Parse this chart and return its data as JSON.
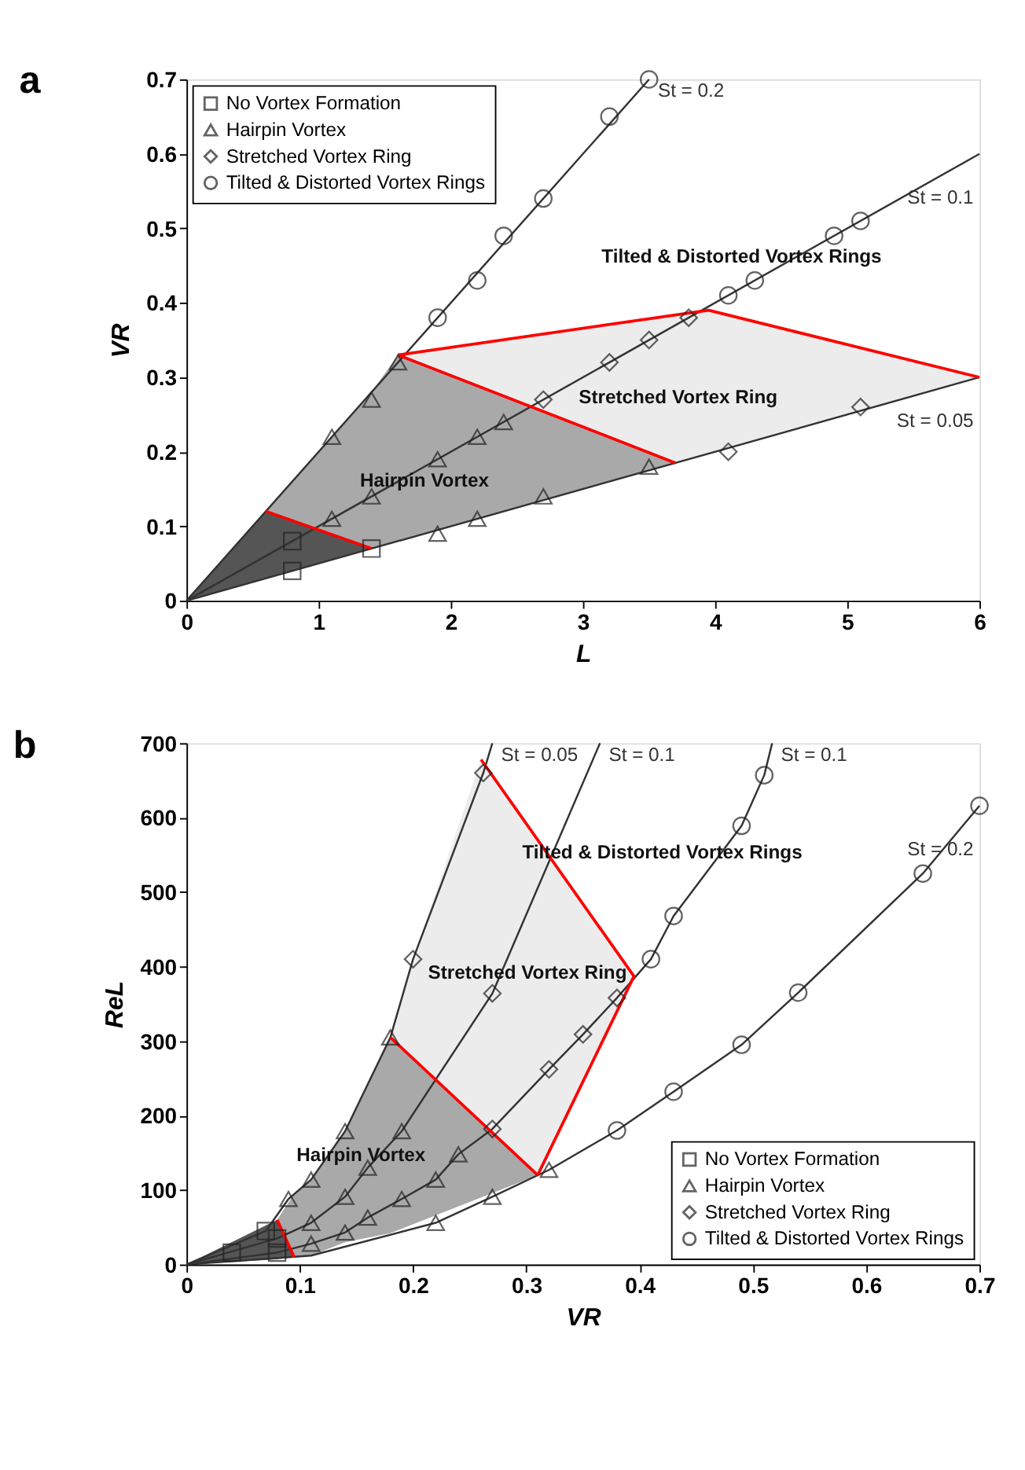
{
  "chart_data": [
    {
      "type": "scatter",
      "title": "a",
      "xlabel": "L",
      "ylabel": "VR",
      "xlim": [
        0,
        6
      ],
      "ylim": [
        0,
        0.7
      ],
      "xticks": [
        0,
        1,
        2,
        3,
        4,
        5,
        6
      ],
      "yticks": [
        0,
        0.1,
        0.2,
        0.3,
        0.4,
        0.5,
        0.6,
        0.7
      ],
      "grid": false,
      "legend": "top left",
      "series": [
        {
          "type": "area",
          "color": "#555555",
          "x": [
            0,
            0.6,
            1.4
          ],
          "values": [
            null,
            null,
            null
          ],
          "upper": [
            0,
            0.12,
            0.07
          ],
          "lower": [
            0,
            0.03,
            0.07
          ]
        },
        {
          "type": "area",
          "color": "#a9a9a9",
          "x": [
            0.6,
            1.4,
            1.6,
            3.7
          ],
          "values": [
            null,
            null,
            null,
            null
          ],
          "upper": [
            0.12,
            0.28,
            0.33,
            0.185
          ],
          "lower": [
            0.12,
            0.07,
            0.08,
            0.185
          ]
        },
        {
          "type": "area",
          "color": "#ececec",
          "x": [
            1.6,
            3.7,
            3.95,
            6
          ],
          "values": [
            null,
            null,
            null,
            null
          ],
          "upper": [
            0.33,
            0.384,
            0.39,
            0.3
          ],
          "lower": [
            0.33,
            0.185,
            0.1975,
            0.3
          ]
        },
        {
          "type": "line",
          "name": "St = 0.2",
          "color": "#333333",
          "x": [
            0,
            3.5
          ],
          "values": [
            0,
            0.7
          ]
        },
        {
          "type": "line",
          "name": "St = 0.1",
          "color": "#333333",
          "x": [
            0,
            6
          ],
          "values": [
            0,
            0.6
          ]
        },
        {
          "type": "line",
          "name": "St = 0.05",
          "color": "#333333",
          "x": [
            0,
            6
          ],
          "values": [
            0,
            0.3
          ]
        },
        {
          "type": "line",
          "color": "#ff0000",
          "x": [
            0.6,
            1.4
          ],
          "values": [
            0.12,
            0.07
          ]
        },
        {
          "type": "line",
          "color": "#ff0000",
          "x": [
            1.6,
            3.7
          ],
          "values": [
            0.33,
            0.185
          ]
        },
        {
          "type": "line",
          "color": "#ff0000",
          "x": [
            1.6,
            3.95,
            6
          ],
          "values": [
            0.33,
            0.39,
            0.3
          ]
        },
        {
          "type": "scatter",
          "name": "No Vortex Formation",
          "marker": "square",
          "color": "#222222",
          "x": [
            0.8,
            0.8,
            1.4
          ],
          "values": [
            0.08,
            0.04,
            0.07
          ]
        },
        {
          "type": "scatter",
          "name": "Hairpin Vortex",
          "marker": "triangle",
          "color": "#222222",
          "x": [
            1.1,
            1.4,
            1.6,
            1.1,
            1.4,
            1.9,
            2.2,
            2.4,
            1.9,
            2.2,
            2.7,
            3.5
          ],
          "values": [
            0.22,
            0.27,
            0.32,
            0.11,
            0.14,
            0.19,
            0.22,
            0.24,
            0.09,
            0.11,
            0.14,
            0.18
          ]
        },
        {
          "type": "scatter",
          "name": "Stretched Vortex Ring",
          "marker": "diamond",
          "color": "#222222",
          "x": [
            2.7,
            3.2,
            3.5,
            3.8,
            4.1,
            5.1
          ],
          "values": [
            0.27,
            0.32,
            0.35,
            0.38,
            0.2,
            0.26
          ]
        },
        {
          "type": "scatter",
          "name": "Tilted & Distorted Vortex Rings",
          "marker": "circle",
          "color": "#222222",
          "x": [
            1.9,
            2.2,
            2.4,
            2.7,
            3.2,
            3.5,
            4.1,
            4.3,
            4.9,
            5.1
          ],
          "values": [
            0.38,
            0.43,
            0.49,
            0.54,
            0.65,
            0.7,
            0.41,
            0.43,
            0.49,
            0.51
          ]
        }
      ],
      "annotations": [
        "Hairpin Vortex",
        "Stretched Vortex Ring",
        "Tilted & Distorted Vortex Rings"
      ]
    },
    {
      "type": "scatter",
      "title": "b",
      "xlabel": "VR",
      "ylabel": "ReL",
      "xlim": [
        0,
        0.7
      ],
      "ylim": [
        0,
        700
      ],
      "xticks": [
        0,
        0.1,
        0.2,
        0.3,
        0.4,
        0.5,
        0.6,
        0.7
      ],
      "yticks": [
        0,
        100,
        200,
        300,
        400,
        500,
        600,
        700
      ],
      "grid": false,
      "legend": "bottom right",
      "series": [
        {
          "type": "area",
          "color": "#555555",
          "x": [
            0,
            0.08,
            0.095
          ],
          "values": [
            null,
            null,
            null
          ],
          "upper": [
            0,
            60,
            10
          ],
          "lower": [
            0,
            7,
            10
          ]
        },
        {
          "type": "area",
          "color": "#a9a9a9",
          "x": [
            0.08,
            0.095,
            0.11,
            0.14,
            0.18,
            0.31
          ],
          "values": [
            null,
            null,
            null,
            null,
            null,
            null
          ],
          "upper": [
            60,
            95,
            114,
            179,
            305,
            120
          ],
          "lower": [
            60,
            10,
            12,
            30,
            42,
            120
          ]
        },
        {
          "type": "area",
          "color": "#ececec",
          "x": [
            0.18,
            0.2,
            0.26,
            0.31,
            0.395
          ],
          "values": [
            null,
            null,
            null,
            null,
            null
          ],
          "upper": [
            305,
            410,
            678,
            570,
            387
          ],
          "lower": [
            305,
            277,
            191,
            120,
            387
          ]
        },
        {
          "type": "line",
          "name": "St = 0.05",
          "color": "#333333",
          "x": [
            0,
            0.07,
            0.09,
            0.11,
            0.14,
            0.18,
            0.2,
            0.262,
            0.27
          ],
          "values": [
            0,
            45,
            88,
            114,
            179,
            305,
            410,
            660,
            700
          ]
        },
        {
          "type": "line",
          "name": "St = 0.1",
          "color": "#333333",
          "x": [
            0,
            0.08,
            0.11,
            0.14,
            0.16,
            0.19,
            0.27,
            0.365
          ],
          "values": [
            0,
            35,
            56,
            91,
            130,
            179,
            364,
            700
          ]
        },
        {
          "type": "line",
          "name": "St = 0.1",
          "color": "#333333",
          "x": [
            0,
            0.08,
            0.11,
            0.14,
            0.16,
            0.19,
            0.22,
            0.24,
            0.27,
            0.32,
            0.35,
            0.38,
            0.41,
            0.43,
            0.49,
            0.51,
            0.517
          ],
          "values": [
            0,
            16,
            28,
            43,
            63,
            88,
            114,
            148,
            182,
            262,
            309,
            358,
            410,
            468,
            589,
            657,
            700
          ]
        },
        {
          "type": "line",
          "name": "St = 0.2",
          "color": "#333333",
          "x": [
            0,
            0.11,
            0.22,
            0.27,
            0.32,
            0.38,
            0.43,
            0.49,
            0.54,
            0.65,
            0.7
          ],
          "values": [
            0,
            12,
            56,
            91,
            127,
            180,
            232,
            295,
            365,
            525,
            616
          ]
        },
        {
          "type": "line",
          "color": "#ff0000",
          "x": [
            0.08,
            0.095
          ],
          "values": [
            60,
            10
          ]
        },
        {
          "type": "line",
          "color": "#ff0000",
          "x": [
            0.18,
            0.31
          ],
          "values": [
            305,
            120
          ]
        },
        {
          "type": "line",
          "color": "#ff0000",
          "x": [
            0.26,
            0.395,
            0.31
          ],
          "values": [
            678,
            387,
            120
          ]
        },
        {
          "type": "scatter",
          "name": "No Vortex Formation",
          "marker": "square",
          "color": "#222222",
          "x": [
            0.04,
            0.07,
            0.08,
            0.08
          ],
          "values": [
            16,
            45,
            35,
            16
          ]
        },
        {
          "type": "scatter",
          "name": "Hairpin Vortex",
          "marker": "triangle",
          "color": "#222222",
          "x": [
            0.14,
            0.11,
            0.09,
            0.19,
            0.16,
            0.14,
            0.11,
            0.24,
            0.22,
            0.19,
            0.16,
            0.14,
            0.11,
            0.22,
            0.27,
            0.18,
            0.32
          ],
          "values": [
            179,
            114,
            88,
            179,
            130,
            91,
            56,
            148,
            114,
            88,
            63,
            43,
            28,
            56,
            91,
            305,
            127
          ]
        },
        {
          "type": "scatter",
          "name": "Stretched Vortex Ring",
          "marker": "diamond",
          "color": "#222222",
          "x": [
            0.262,
            0.2,
            0.27,
            0.27,
            0.32,
            0.35,
            0.38
          ],
          "values": [
            660,
            410,
            364,
            182,
            262,
            309,
            358
          ]
        },
        {
          "type": "scatter",
          "name": "Tilted & Distorted Vortex Rings",
          "marker": "circle",
          "color": "#222222",
          "x": [
            0.51,
            0.49,
            0.43,
            0.41,
            0.38,
            0.43,
            0.49,
            0.54,
            0.65,
            0.7
          ],
          "values": [
            657,
            589,
            468,
            410,
            180,
            232,
            295,
            365,
            525,
            616
          ]
        }
      ],
      "annotations": [
        "Hairpin Vortex",
        "Stretched Vortex Ring",
        "Tilted & Distorted Vortex Rings"
      ]
    }
  ]
}
